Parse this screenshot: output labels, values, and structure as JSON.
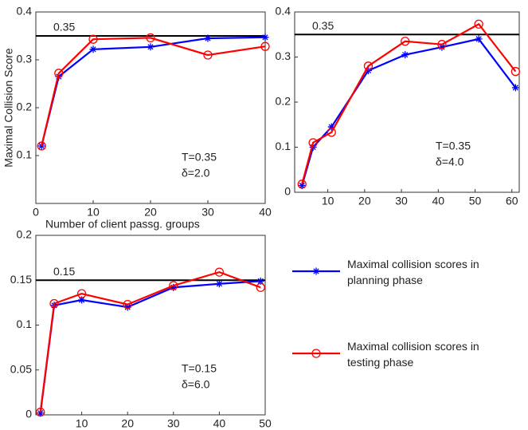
{
  "chart_data": [
    {
      "type": "line",
      "ylabel": "Maximal Collision Score",
      "xlabel": "Number of client passg. groups",
      "xlim": [
        0,
        40
      ],
      "xticks": [
        0,
        10,
        20,
        30,
        40
      ],
      "ylim": [
        0,
        0.4
      ],
      "yticks": [
        0.1,
        0.2,
        0.3,
        0.4
      ],
      "threshold": 0.35,
      "annotations": [
        "T=0.35",
        "δ=2.0"
      ],
      "x": [
        1,
        4,
        10,
        20,
        30,
        40
      ],
      "series": [
        {
          "color": "#0000ff",
          "marker": "asterisk",
          "values": [
            0.12,
            0.265,
            0.322,
            0.327,
            0.345,
            0.347
          ]
        },
        {
          "color": "#ff0000",
          "marker": "circle",
          "values": [
            0.12,
            0.272,
            0.343,
            0.346,
            0.31,
            0.328
          ]
        }
      ]
    },
    {
      "type": "line",
      "xlim": [
        1,
        62
      ],
      "xticks": [
        10,
        20,
        30,
        40,
        50,
        60
      ],
      "ylim": [
        0,
        0.4
      ],
      "yticks": [
        0,
        0.1,
        0.2,
        0.3,
        0.4
      ],
      "threshold": 0.35,
      "annotations": [
        "T=0.35",
        "δ=4.0"
      ],
      "x": [
        3,
        6,
        11,
        21,
        31,
        41,
        51,
        61
      ],
      "series": [
        {
          "color": "#0000ff",
          "marker": "asterisk",
          "values": [
            0.015,
            0.1,
            0.145,
            0.27,
            0.305,
            0.322,
            0.34,
            0.232
          ]
        },
        {
          "color": "#ff0000",
          "marker": "circle",
          "values": [
            0.018,
            0.11,
            0.133,
            0.28,
            0.335,
            0.328,
            0.373,
            0.268
          ]
        }
      ]
    },
    {
      "type": "line",
      "xlim": [
        0,
        50
      ],
      "xticks": [
        10,
        20,
        30,
        40,
        50
      ],
      "ylim": [
        0,
        0.2
      ],
      "yticks": [
        0,
        0.05,
        0.1,
        0.15,
        0.2
      ],
      "threshold": 0.15,
      "annotations": [
        "T=0.15",
        "δ=6.0"
      ],
      "x": [
        1,
        4,
        10,
        20,
        30,
        40,
        49
      ],
      "series": [
        {
          "name": "Maximal collision scores in planning phase",
          "color": "#0000ff",
          "marker": "asterisk",
          "values": [
            0.002,
            0.122,
            0.128,
            0.12,
            0.142,
            0.146,
            0.149
          ]
        },
        {
          "name": "Maximal collision scores in testing phase",
          "color": "#ff0000",
          "marker": "circle",
          "values": [
            0.003,
            0.124,
            0.135,
            0.123,
            0.144,
            0.159,
            0.142
          ]
        }
      ]
    }
  ]
}
